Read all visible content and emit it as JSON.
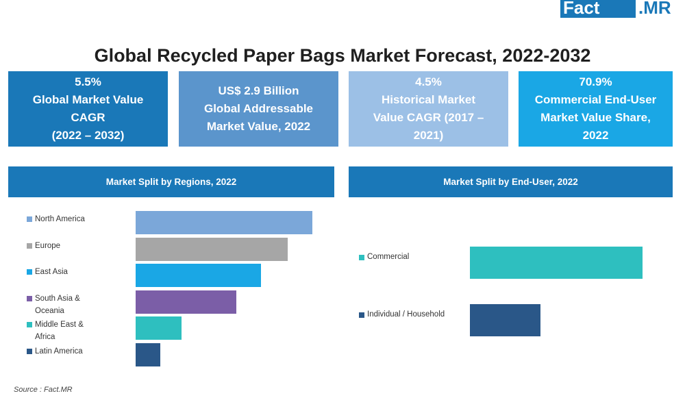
{
  "logo": {
    "fact": "Fact",
    "mr": ".MR"
  },
  "title": "Global Recycled Paper Bags Market Forecast, 2022-2032",
  "kpis": [
    {
      "lines": [
        "5.5%",
        "Global Market Value",
        "CAGR",
        "(2022 – 2032)"
      ],
      "color": "#1a78b8"
    },
    {
      "lines": [
        "US$ 2.9 Billion",
        "Global Addressable",
        "Market Value, 2022"
      ],
      "color": "#5b95cc"
    },
    {
      "lines": [
        "4.5%",
        "Historical Market",
        "Value CAGR (2017 –",
        "2021)"
      ],
      "color": "#9cc0e6"
    },
    {
      "lines": [
        "70.9%",
        "Commercial End-User",
        "Market Value Share,",
        "2022"
      ],
      "color": "#1aa7e5"
    }
  ],
  "chart_data": [
    {
      "type": "bar",
      "title": "Market Split by Regions, 2022",
      "categories": [
        "North America",
        "Europe",
        "East Asia",
        "South Asia & Oceania",
        "Middle East & Africa",
        "Latin America"
      ],
      "legend_lines": [
        [
          "North America"
        ],
        [
          "Europe"
        ],
        [
          "East Asia"
        ],
        [
          "South Asia &",
          "Oceania"
        ],
        [
          "Middle East &",
          "Africa"
        ],
        [
          "Latin America"
        ]
      ],
      "values": [
        100,
        86,
        71,
        57,
        26,
        14
      ],
      "colors": [
        "#7ba7d9",
        "#a6a6a6",
        "#1aa7e5",
        "#7b5ea7",
        "#2ebfbf",
        "#2a5788"
      ],
      "header_color": "#1a78b8"
    },
    {
      "type": "bar",
      "title": "Market Split by End-User, 2022",
      "categories": [
        "Commercial",
        "Individual / Household"
      ],
      "legend_lines": [
        [
          "Commercial"
        ],
        [
          "Individual / Household"
        ]
      ],
      "values": [
        70.9,
        29.1
      ],
      "colors": [
        "#2ebfbf",
        "#2a5788"
      ],
      "header_color": "#1a78b8"
    }
  ],
  "source": "Source : Fact.MR"
}
